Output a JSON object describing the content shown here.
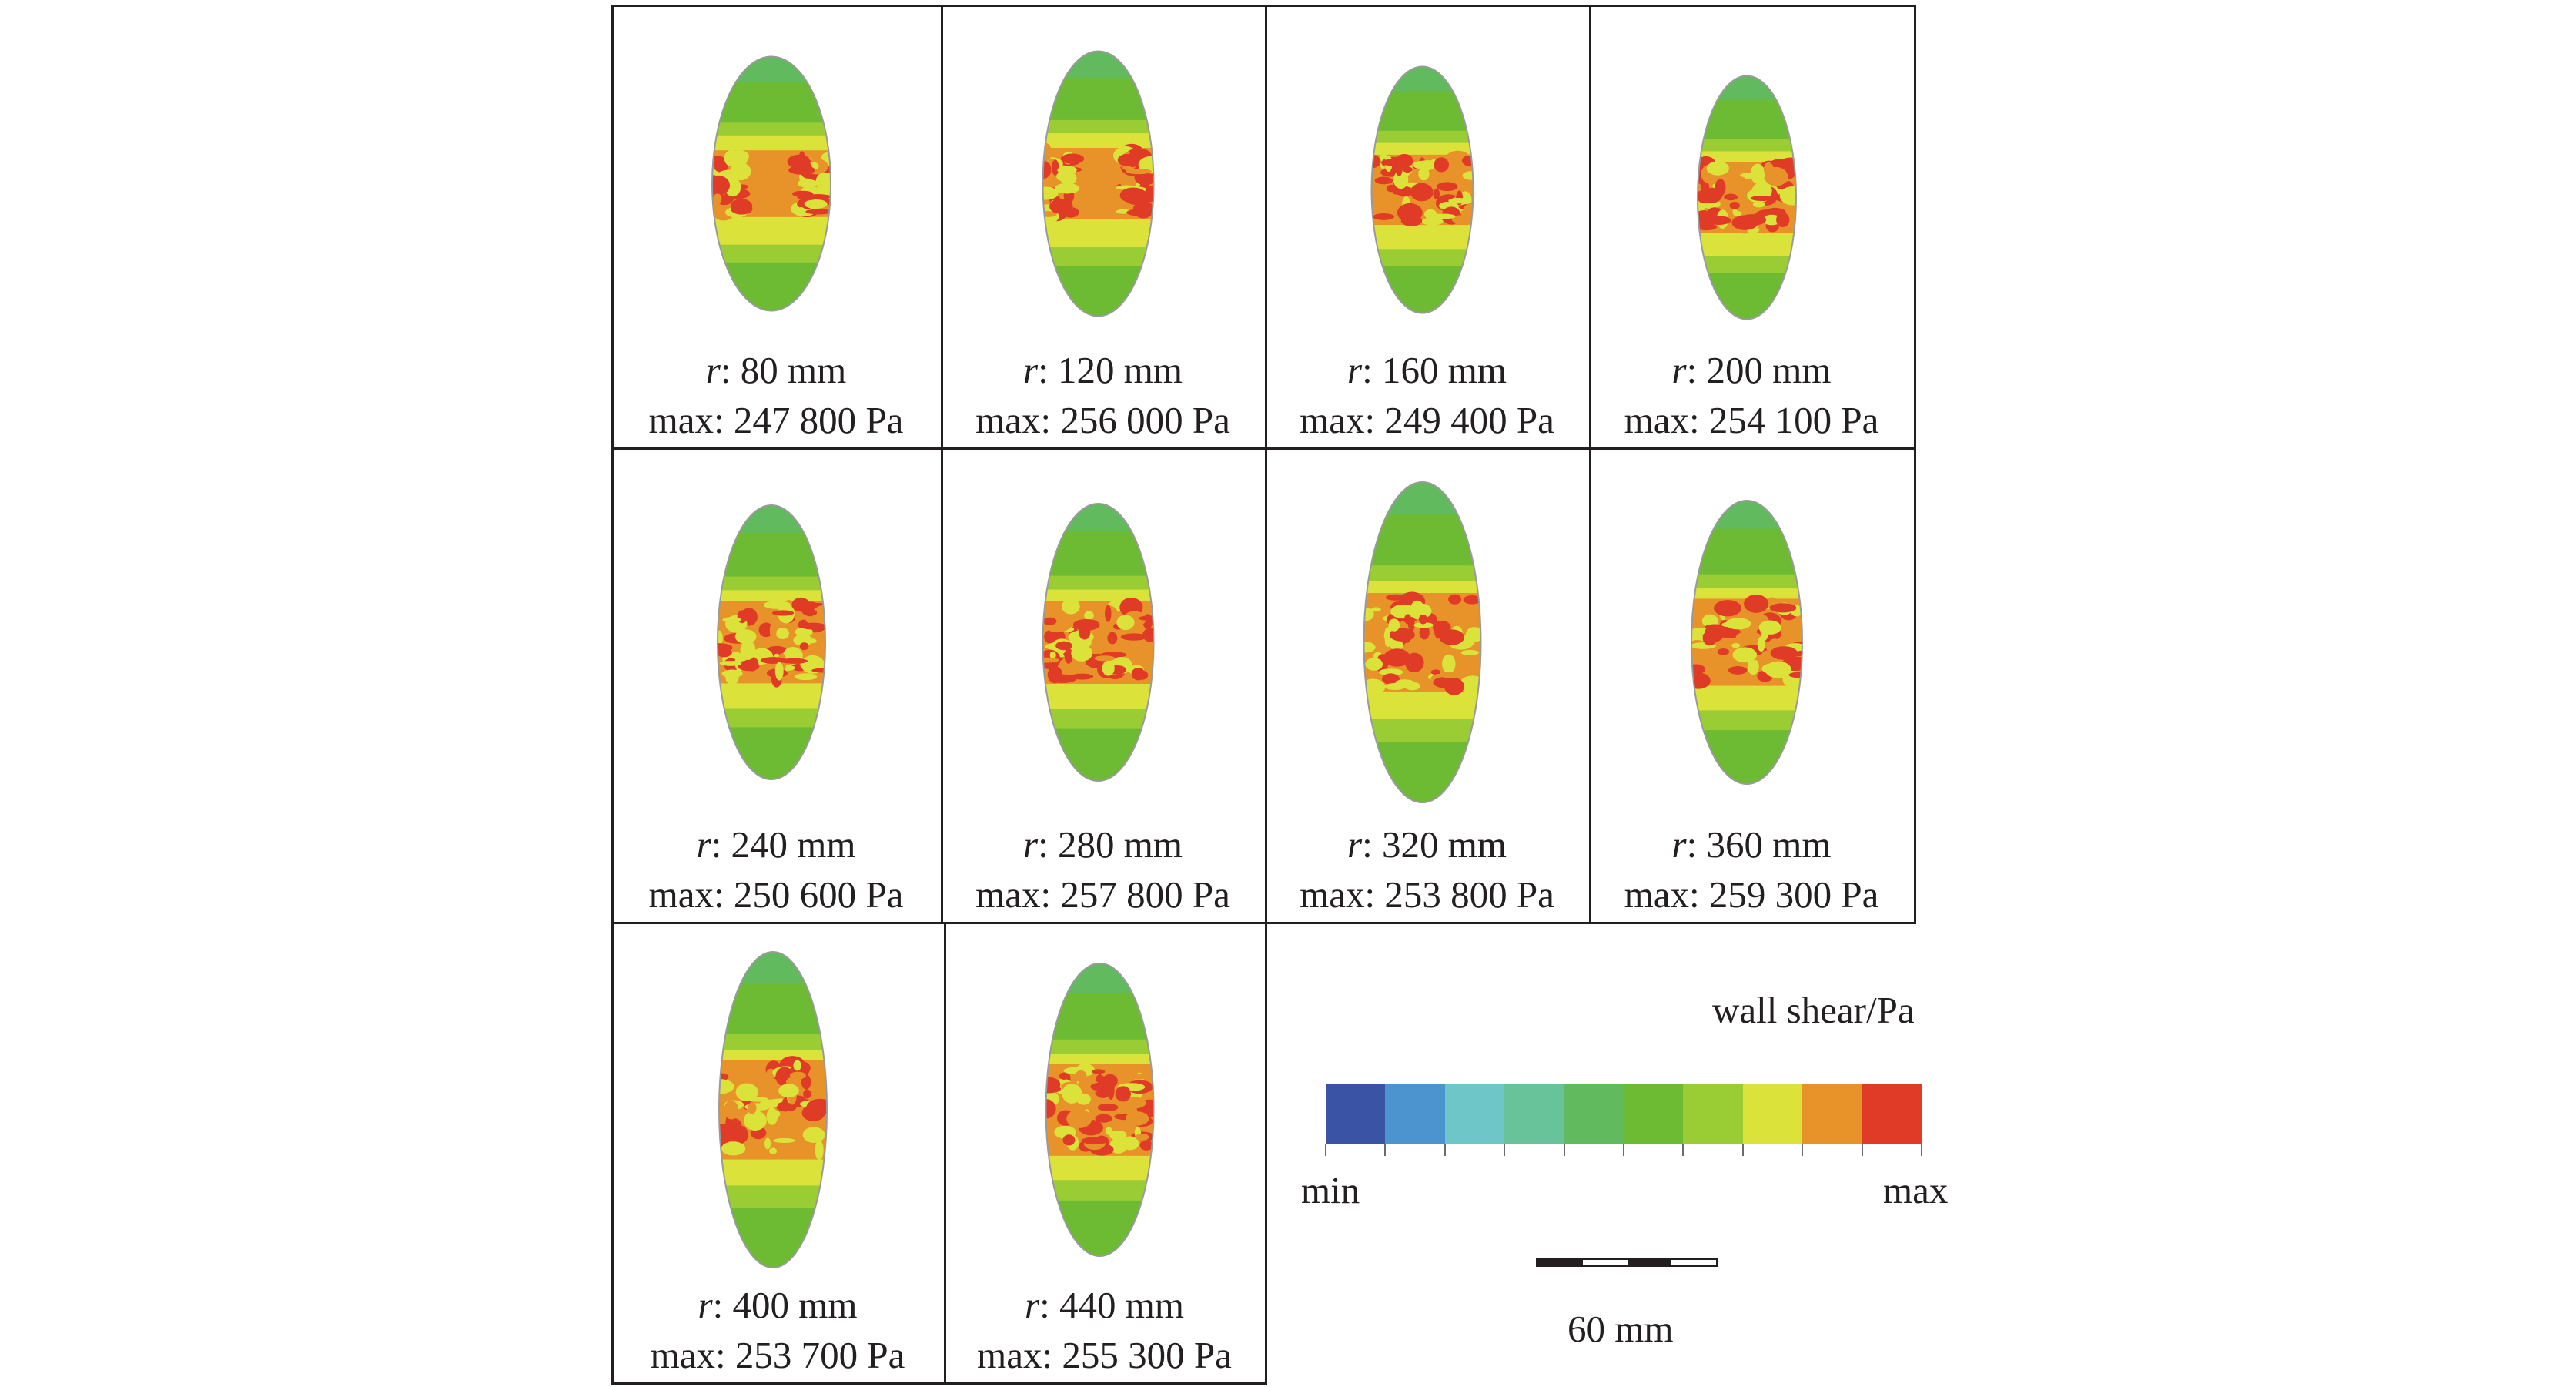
{
  "figure": {
    "panels": [
      {
        "r_prefix": "r",
        "r_value": ": 80 mm",
        "max_label": "max: 247 800 Pa",
        "seed": 1,
        "hot_spread": 0.55
      },
      {
        "r_prefix": "r",
        "r_value": ": 120 mm",
        "max_label": "max: 256 000 Pa",
        "seed": 2,
        "hot_spread": 0.6
      },
      {
        "r_prefix": "r",
        "r_value": ": 160 mm",
        "max_label": "max: 249 400 Pa",
        "seed": 3,
        "hot_spread": 0.7
      },
      {
        "r_prefix": "r",
        "r_value": ": 200 mm",
        "max_label": "max: 254 100 Pa",
        "seed": 4,
        "hot_spread": 0.75
      },
      {
        "r_prefix": "r",
        "r_value": ": 240 mm",
        "max_label": "max: 250 600 Pa",
        "seed": 5,
        "hot_spread": 0.8
      },
      {
        "r_prefix": "r",
        "r_value": ": 280 mm",
        "max_label": "max: 257 800 Pa",
        "seed": 6,
        "hot_spread": 0.8
      },
      {
        "r_prefix": "r",
        "r_value": ": 320 mm",
        "max_label": "max: 253 800 Pa",
        "seed": 7,
        "hot_spread": 0.85
      },
      {
        "r_prefix": "r",
        "r_value": ": 360 mm",
        "max_label": "max: 259 300 Pa",
        "seed": 8,
        "hot_spread": 0.85
      },
      {
        "r_prefix": "r",
        "r_value": ": 400 mm",
        "max_label": "max: 253 700 Pa",
        "seed": 9,
        "hot_spread": 0.9
      },
      {
        "r_prefix": "r",
        "r_value": ": 440 mm",
        "max_label": "max: 255 300 Pa",
        "seed": 10,
        "hot_spread": 0.9
      }
    ]
  },
  "legend": {
    "title": "wall shear/Pa",
    "min_label": "min",
    "max_label": "max",
    "colors": [
      "#3a53a4",
      "#4b94d0",
      "#6ec6c8",
      "#68c39a",
      "#62ba5e",
      "#6dbb33",
      "#9acd34",
      "#dbe33a",
      "#e8922a",
      "#df3b26"
    ]
  },
  "scale_bar": {
    "label": "60 mm"
  }
}
